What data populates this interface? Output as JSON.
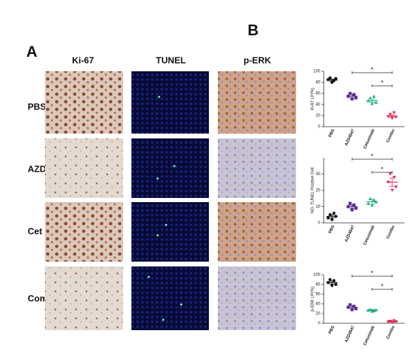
{
  "panels": {
    "a": "A",
    "b": "B"
  },
  "columns": [
    "Ki-67",
    "TUNEL",
    "p-ERK"
  ],
  "rows": [
    "PBS",
    "AZD",
    "Cet",
    "Com"
  ],
  "chart_data": [
    {
      "type": "dot",
      "ylabel": "Ki-67 LP(%)",
      "categories": [
        "PBS",
        "AZD4547",
        "Cetuximab",
        "Combo"
      ],
      "colors": [
        "#111111",
        "#5b2d8e",
        "#22b07a",
        "#e0305a"
      ],
      "values": [
        84,
        55,
        47,
        19
      ],
      "errors": [
        2,
        3,
        3,
        2
      ],
      "points": [
        [
          85,
          88,
          80,
          83,
          87
        ],
        [
          55,
          60,
          50,
          58,
          52
        ],
        [
          47,
          52,
          42,
          55,
          44
        ],
        [
          18,
          22,
          15,
          25,
          17
        ]
      ],
      "ylim": [
        0,
        100
      ],
      "yticks": [
        0,
        20,
        40,
        60,
        80,
        100
      ],
      "annotations": [
        {
          "text": "*",
          "pair": [
            "AZD4547",
            "Combo"
          ]
        },
        {
          "text": "*",
          "pair": [
            "Cetuximab",
            "Combo"
          ]
        }
      ]
    },
    {
      "type": "dot",
      "ylabel": "NO. TUNEL Positive Cell",
      "categories": [
        "PBS",
        "AZD4547",
        "Cetuximab",
        "Combo"
      ],
      "colors": [
        "#111111",
        "#5b2d8e",
        "#22b07a",
        "#e0305a"
      ],
      "values": [
        4,
        10,
        13,
        25
      ],
      "errors": [
        1,
        1,
        1.5,
        2.5
      ],
      "points": [
        [
          3,
          5,
          2,
          6,
          4
        ],
        [
          10,
          12,
          8,
          11,
          9
        ],
        [
          12,
          15,
          11,
          14,
          13
        ],
        [
          25,
          30,
          20,
          28,
          22
        ]
      ],
      "ylim": [
        0,
        40
      ],
      "yticks": [
        0,
        10,
        20,
        30
      ],
      "annotations": [
        {
          "text": "*",
          "pair": [
            "AZD4547",
            "Combo"
          ]
        },
        {
          "text": "*",
          "pair": [
            "Cetuximab",
            "Combo"
          ]
        }
      ]
    },
    {
      "type": "dot",
      "ylabel": "p-ERK LP(%)",
      "categories": [
        "PBS",
        "AZD4547",
        "Cetuximab",
        "Combo"
      ],
      "colors": [
        "#111111",
        "#5b2d8e",
        "#22b07a",
        "#e0305a"
      ],
      "values": [
        84,
        33,
        27,
        3
      ],
      "errors": [
        3,
        3,
        1.5,
        1
      ],
      "points": [
        [
          84,
          90,
          78,
          88,
          80
        ],
        [
          33,
          38,
          28,
          35,
          30
        ],
        [
          27,
          29,
          25,
          26,
          28
        ],
        [
          3,
          4,
          2,
          5,
          3
        ]
      ],
      "ylim": [
        0,
        100
      ],
      "yticks": [
        0,
        20,
        40,
        60,
        80,
        100
      ],
      "annotations": [
        {
          "text": "*",
          "pair": [
            "AZD4547",
            "Combo"
          ]
        },
        {
          "text": "*",
          "pair": [
            "Cetuximab",
            "Combo"
          ]
        }
      ]
    }
  ]
}
